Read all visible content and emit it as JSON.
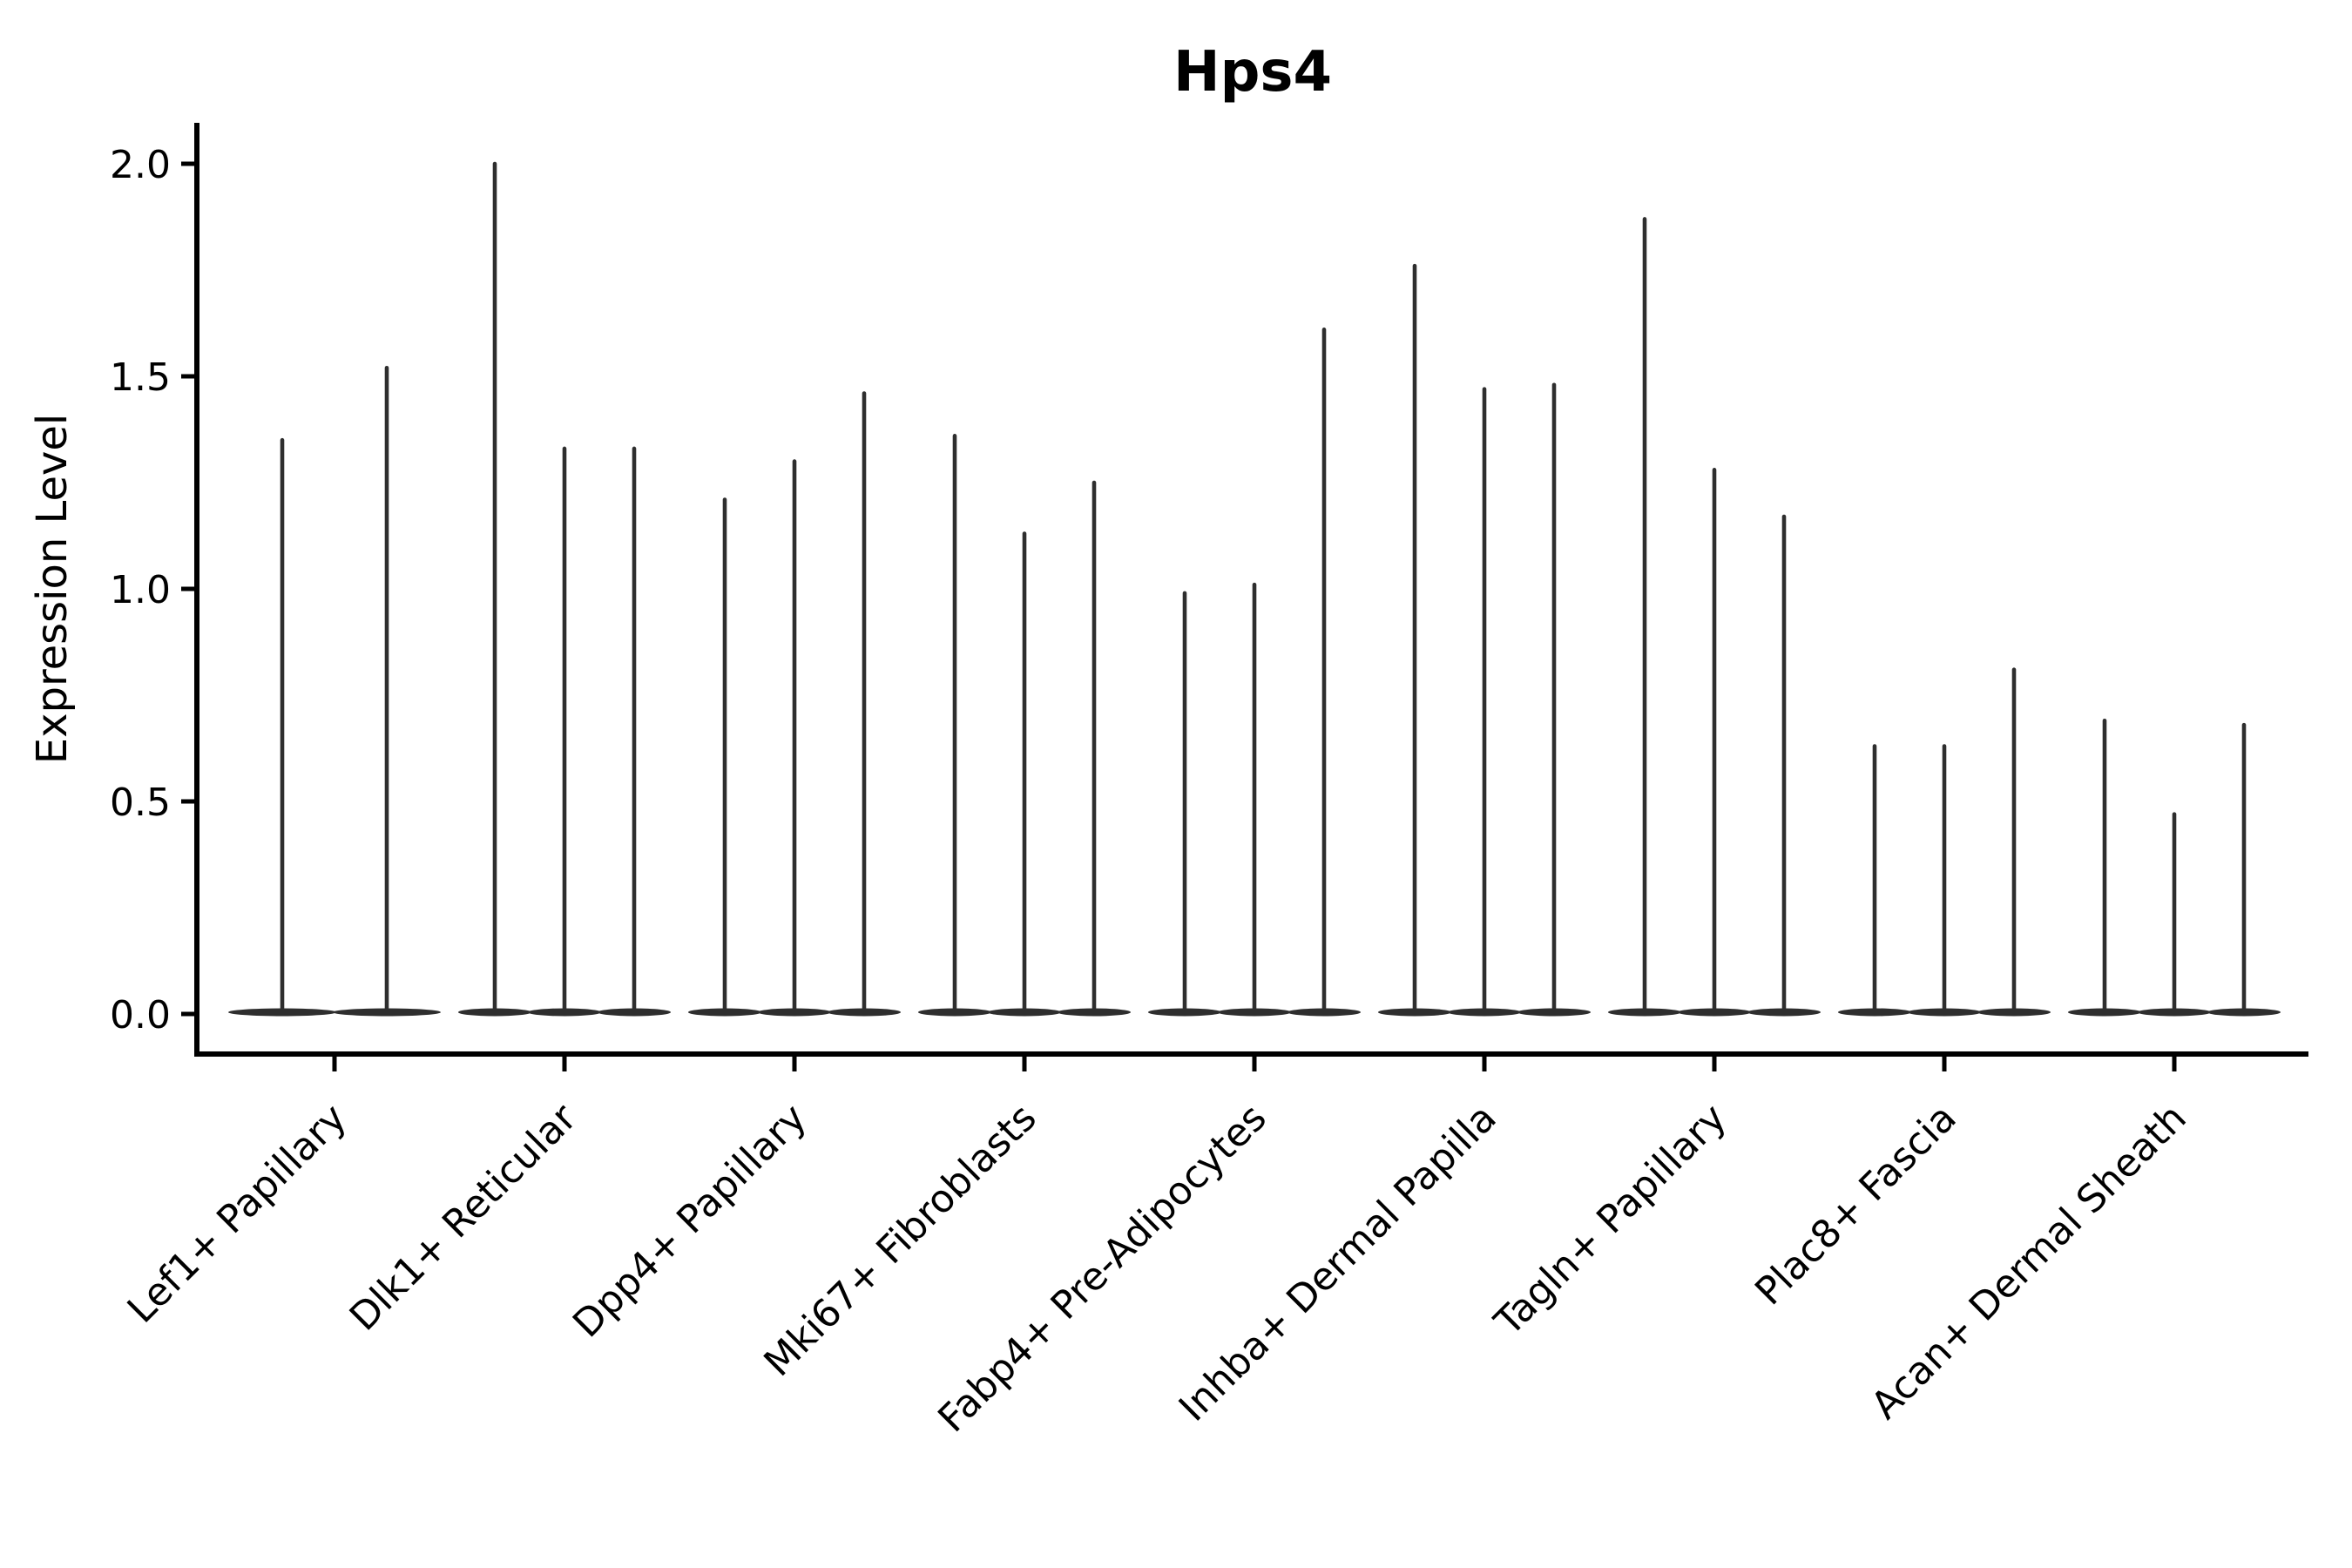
{
  "chart_data": {
    "type": "violin",
    "title": "Hps4",
    "ylabel": "Expression Level",
    "xlabel": "",
    "yticks": [
      0.0,
      0.5,
      1.0,
      1.5,
      2.0
    ],
    "ylim": [
      -0.09,
      2.1
    ],
    "grid": false,
    "legend": "none",
    "categories": [
      "Lef1+ Papillary",
      "Dlk1+ Reticular",
      "Dpp4+ Papillary",
      "Mki67+ Fibroblasts",
      "Fabp4+ Pre-Adipocytes",
      "Inhba+ Dermal Papilla",
      "Tagln+ Papillary",
      "Plac8+ Fascia",
      "Acan+ Dermal Sheath"
    ],
    "groups": [
      {
        "label": "Lef1+ Papillary",
        "violin_maxima": [
          1.35,
          1.52
        ]
      },
      {
        "label": "Dlk1+ Reticular",
        "violin_maxima": [
          2.0,
          1.33,
          1.33
        ]
      },
      {
        "label": "Dpp4+ Papillary",
        "violin_maxima": [
          1.21,
          1.3,
          1.46
        ]
      },
      {
        "label": "Mki67+ Fibroblasts",
        "violin_maxima": [
          1.36,
          1.13,
          1.25
        ]
      },
      {
        "label": "Fabp4+ Pre-Adipocytes",
        "violin_maxima": [
          0.99,
          1.01,
          1.61
        ]
      },
      {
        "label": "Inhba+ Dermal Papilla",
        "violin_maxima": [
          1.76,
          1.47,
          1.48
        ]
      },
      {
        "label": "Tagln+ Papillary",
        "violin_maxima": [
          1.87,
          1.28,
          1.17
        ]
      },
      {
        "label": "Plac8+ Fascia",
        "violin_maxima": [
          0.63,
          0.63,
          0.81
        ]
      },
      {
        "label": "Acan+ Dermal Sheath",
        "violin_maxima": [
          0.69,
          0.47,
          0.68
        ]
      }
    ],
    "colors": {
      "violin": "#2e2e2e",
      "axis": "#000000",
      "background": "#ffffff"
    }
  }
}
